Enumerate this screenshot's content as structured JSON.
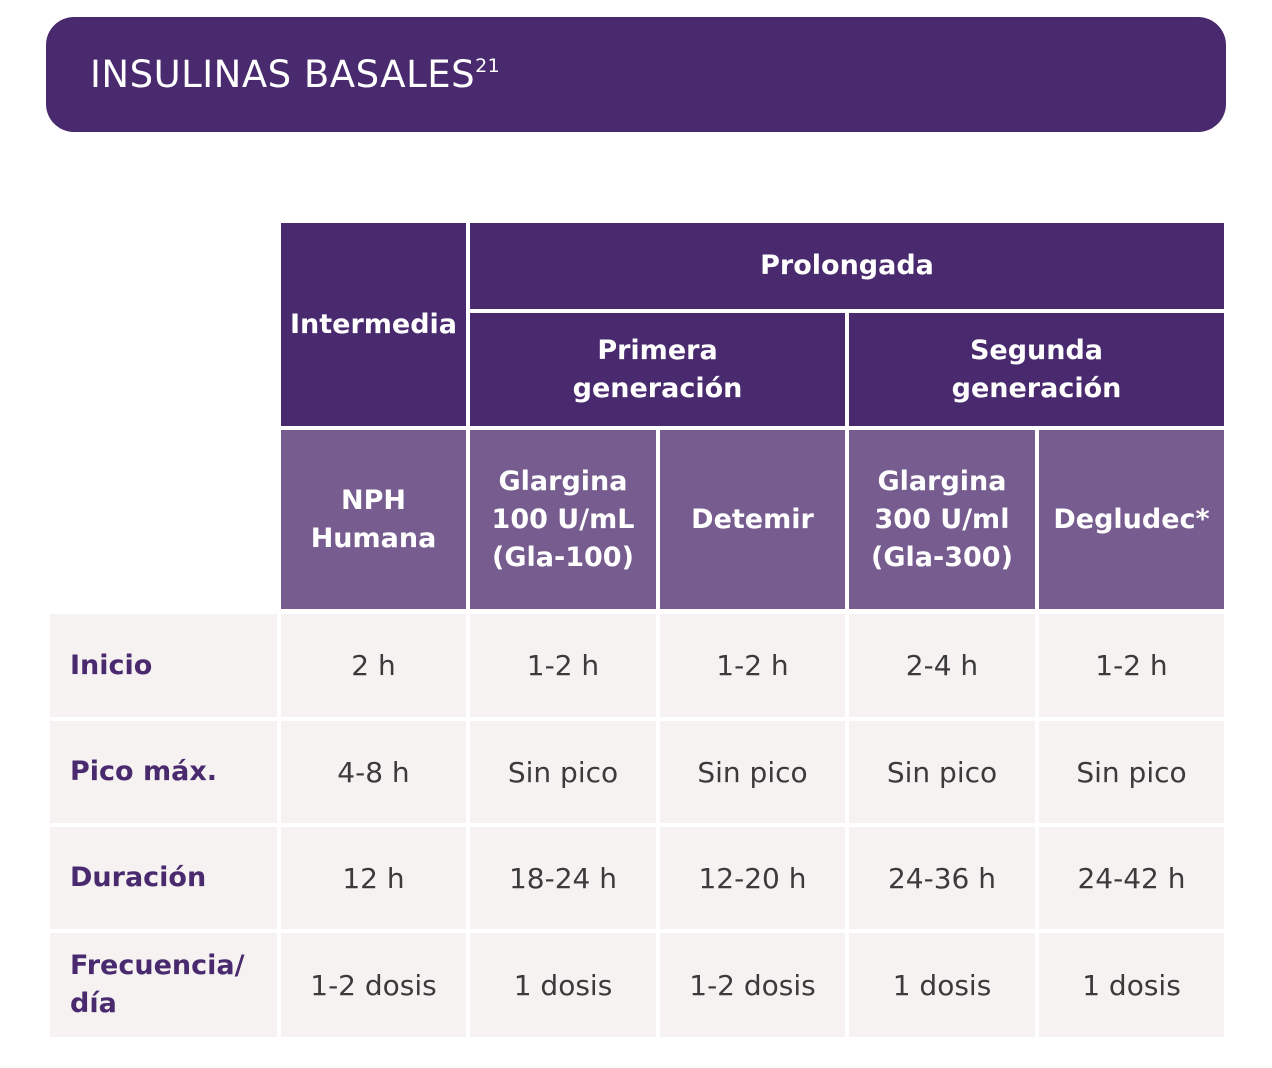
{
  "banner": {
    "title": "INSULINAS BASALES",
    "reference": "21"
  },
  "table": {
    "groups": {
      "intermedia": "Intermedia",
      "prolongada": "Prolongada",
      "primera_generacion": "Primera\ngeneración",
      "segunda_generacion": "Segunda\ngeneración"
    },
    "columns": [
      "NPH\nHumana",
      "Glargina\n100 U/mL\n(Gla-100)",
      "Detemir",
      "Glargina\n300 U/ml\n(Gla-300)",
      "Degludec*"
    ],
    "rows": [
      {
        "label": "Inicio",
        "values": [
          "2 h",
          "1-2 h",
          "1-2 h",
          "2-4 h",
          "1-2 h"
        ]
      },
      {
        "label": "Pico máx.",
        "values": [
          "4-8 h",
          "Sin pico",
          "Sin pico",
          "Sin pico",
          "Sin pico"
        ]
      },
      {
        "label": "Duración",
        "values": [
          "12 h",
          "18-24 h",
          "12-20 h",
          "24-36 h",
          "24-42 h"
        ]
      },
      {
        "label": "Frecuencia/\ndía",
        "values": [
          "1-2 dosis",
          "1 dosis",
          "1-2 dosis",
          "1 dosis",
          "1 dosis"
        ]
      }
    ]
  }
}
